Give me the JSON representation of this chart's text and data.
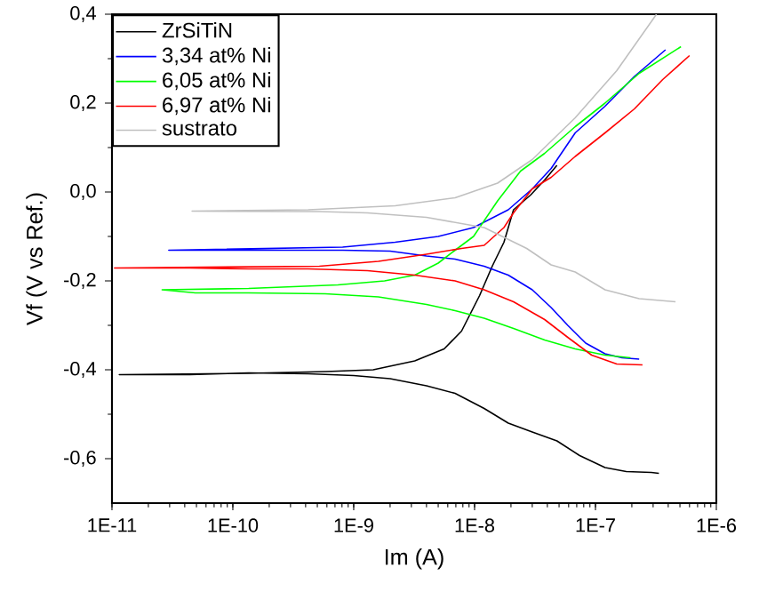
{
  "chart_data": {
    "type": "line",
    "xlabel": "Im (A)",
    "ylabel": "Vf (V vs Ref.)",
    "log": "x",
    "xlim": [
      1e-11,
      1e-06
    ],
    "ylim": [
      -0.7,
      0.4
    ],
    "xticks": [
      {
        "value": 1e-11,
        "label": "1E-11"
      },
      {
        "value": 1e-10,
        "label": "1E-10"
      },
      {
        "value": 1e-09,
        "label": "1E-9"
      },
      {
        "value": 1e-08,
        "label": "1E-8"
      },
      {
        "value": 1e-07,
        "label": "1E-7"
      },
      {
        "value": 1e-06,
        "label": "1E-6"
      }
    ],
    "yticks": [
      {
        "value": -0.6,
        "label": "-0,6"
      },
      {
        "value": -0.4,
        "label": "-0,4"
      },
      {
        "value": -0.2,
        "label": "-0,2"
      },
      {
        "value": 0,
        "label": "0,0"
      },
      {
        "value": 0.2,
        "label": "0,2"
      },
      {
        "value": 0.4,
        "label": "0,4"
      }
    ],
    "legend": "top left",
    "marker": "none",
    "line_style": "solid",
    "grid": false,
    "series": [
      {
        "name": "ZrSiTiN",
        "color": "#000000",
        "x": [
          3.35e-07,
          2.9e-07,
          1.8e-07,
          1.2e-07,
          7.4e-08,
          4.8e-08,
          3e-08,
          1.9e-08,
          1.2e-08,
          6.9e-09,
          4e-09,
          2e-09,
          1e-09,
          4.2e-10,
          1.35e-10,
          4.4e-11,
          1.15e-11,
          1.35e-10,
          5.9e-10,
          1.45e-09,
          3.2e-09,
          5.6e-09,
          7.8e-09,
          1.1e-08,
          1.4e-08,
          1.75e-08,
          2.1e-08,
          2.9e-08,
          3.8e-08,
          4.8e-08
        ],
        "values": [
          -0.633,
          -0.631,
          -0.629,
          -0.62,
          -0.593,
          -0.56,
          -0.54,
          -0.52,
          -0.487,
          -0.453,
          -0.436,
          -0.42,
          -0.413,
          -0.409,
          -0.407,
          -0.411,
          -0.411,
          -0.408,
          -0.404,
          -0.4,
          -0.38,
          -0.353,
          -0.313,
          -0.233,
          -0.167,
          -0.113,
          -0.04,
          -0.007,
          0.027,
          0.06
        ]
      },
      {
        "name": "3,34 at% Ni",
        "color": "#0000ff",
        "x": [
          2.3e-07,
          1.66e-07,
          1.2e-07,
          8.3e-08,
          5.9e-08,
          4.3e-08,
          3e-08,
          1.9e-08,
          1.2e-08,
          6.9e-09,
          4e-09,
          2e-09,
          8.1e-10,
          2.95e-11,
          8.1e-10,
          2.2e-09,
          5e-09,
          9.8e-09,
          1.9e-08,
          3e-08,
          4.3e-08,
          6.8e-08,
          1.2e-07,
          2.1e-07,
          3.8e-07
        ],
        "values": [
          -0.376,
          -0.373,
          -0.364,
          -0.34,
          -0.3,
          -0.26,
          -0.22,
          -0.187,
          -0.167,
          -0.151,
          -0.144,
          -0.133,
          -0.131,
          -0.131,
          -0.124,
          -0.113,
          -0.1,
          -0.08,
          -0.04,
          0.007,
          0.053,
          0.133,
          0.193,
          0.26,
          0.32
        ]
      },
      {
        "name": "6,05 at% Ni",
        "color": "#00ff00",
        "x": [
          1.95e-07,
          1.2e-07,
          6.8e-08,
          3.8e-08,
          2.1e-08,
          1.2e-08,
          6.9e-09,
          4e-09,
          1.6e-09,
          5.8e-10,
          1.35e-10,
          4.9e-11,
          2.6e-11,
          1.35e-10,
          7.4e-10,
          1.8e-09,
          3.2e-09,
          5e-09,
          6.9e-09,
          9.8e-09,
          1.55e-08,
          2.4e-08,
          3.8e-08,
          6.8e-08,
          1.2e-07,
          2.3e-07,
          5.1e-07
        ],
        "values": [
          -0.373,
          -0.367,
          -0.353,
          -0.333,
          -0.307,
          -0.284,
          -0.267,
          -0.253,
          -0.236,
          -0.229,
          -0.227,
          -0.227,
          -0.22,
          -0.217,
          -0.209,
          -0.2,
          -0.187,
          -0.16,
          -0.131,
          -0.1,
          -0.02,
          0.047,
          0.087,
          0.147,
          0.2,
          0.267,
          0.327
        ]
      },
      {
        "name": "6,97 at% Ni",
        "color": "#ff0000",
        "x": [
          2.45e-07,
          1.5e-07,
          9.3e-08,
          5.9e-08,
          3.8e-08,
          2.1e-08,
          1.2e-08,
          6.9e-09,
          3.2e-09,
          1.3e-09,
          4.2e-10,
          1.35e-10,
          4.4e-11,
          1.05e-11,
          5.2e-10,
          1.6e-09,
          4e-09,
          7.8e-09,
          1.2e-08,
          1.75e-08,
          2.1e-08,
          3e-08,
          4.3e-08,
          6.8e-08,
          1.2e-07,
          2.1e-07,
          3.6e-07,
          6e-07
        ],
        "values": [
          -0.389,
          -0.387,
          -0.367,
          -0.327,
          -0.287,
          -0.247,
          -0.22,
          -0.2,
          -0.187,
          -0.177,
          -0.173,
          -0.173,
          -0.171,
          -0.171,
          -0.167,
          -0.156,
          -0.14,
          -0.127,
          -0.12,
          -0.08,
          -0.047,
          0.007,
          0.033,
          0.08,
          0.133,
          0.187,
          0.253,
          0.307
        ]
      },
      {
        "name": "sustrato",
        "color": "#c0c0c0",
        "x": [
          4.6e-07,
          2.3e-07,
          1.2e-07,
          6.8e-08,
          4.3e-08,
          2.7e-08,
          1.2e-08,
          4e-09,
          1.3e-09,
          5.2e-10,
          4.6e-11,
          4.2e-10,
          2.2e-09,
          6.9e-09,
          1.55e-08,
          3e-08,
          6.8e-08,
          1.5e-07,
          3.2e-07
        ],
        "values": [
          -0.247,
          -0.24,
          -0.22,
          -0.18,
          -0.164,
          -0.127,
          -0.08,
          -0.057,
          -0.047,
          -0.044,
          -0.043,
          -0.04,
          -0.031,
          -0.013,
          0.02,
          0.073,
          0.167,
          0.273,
          0.4
        ]
      }
    ]
  }
}
